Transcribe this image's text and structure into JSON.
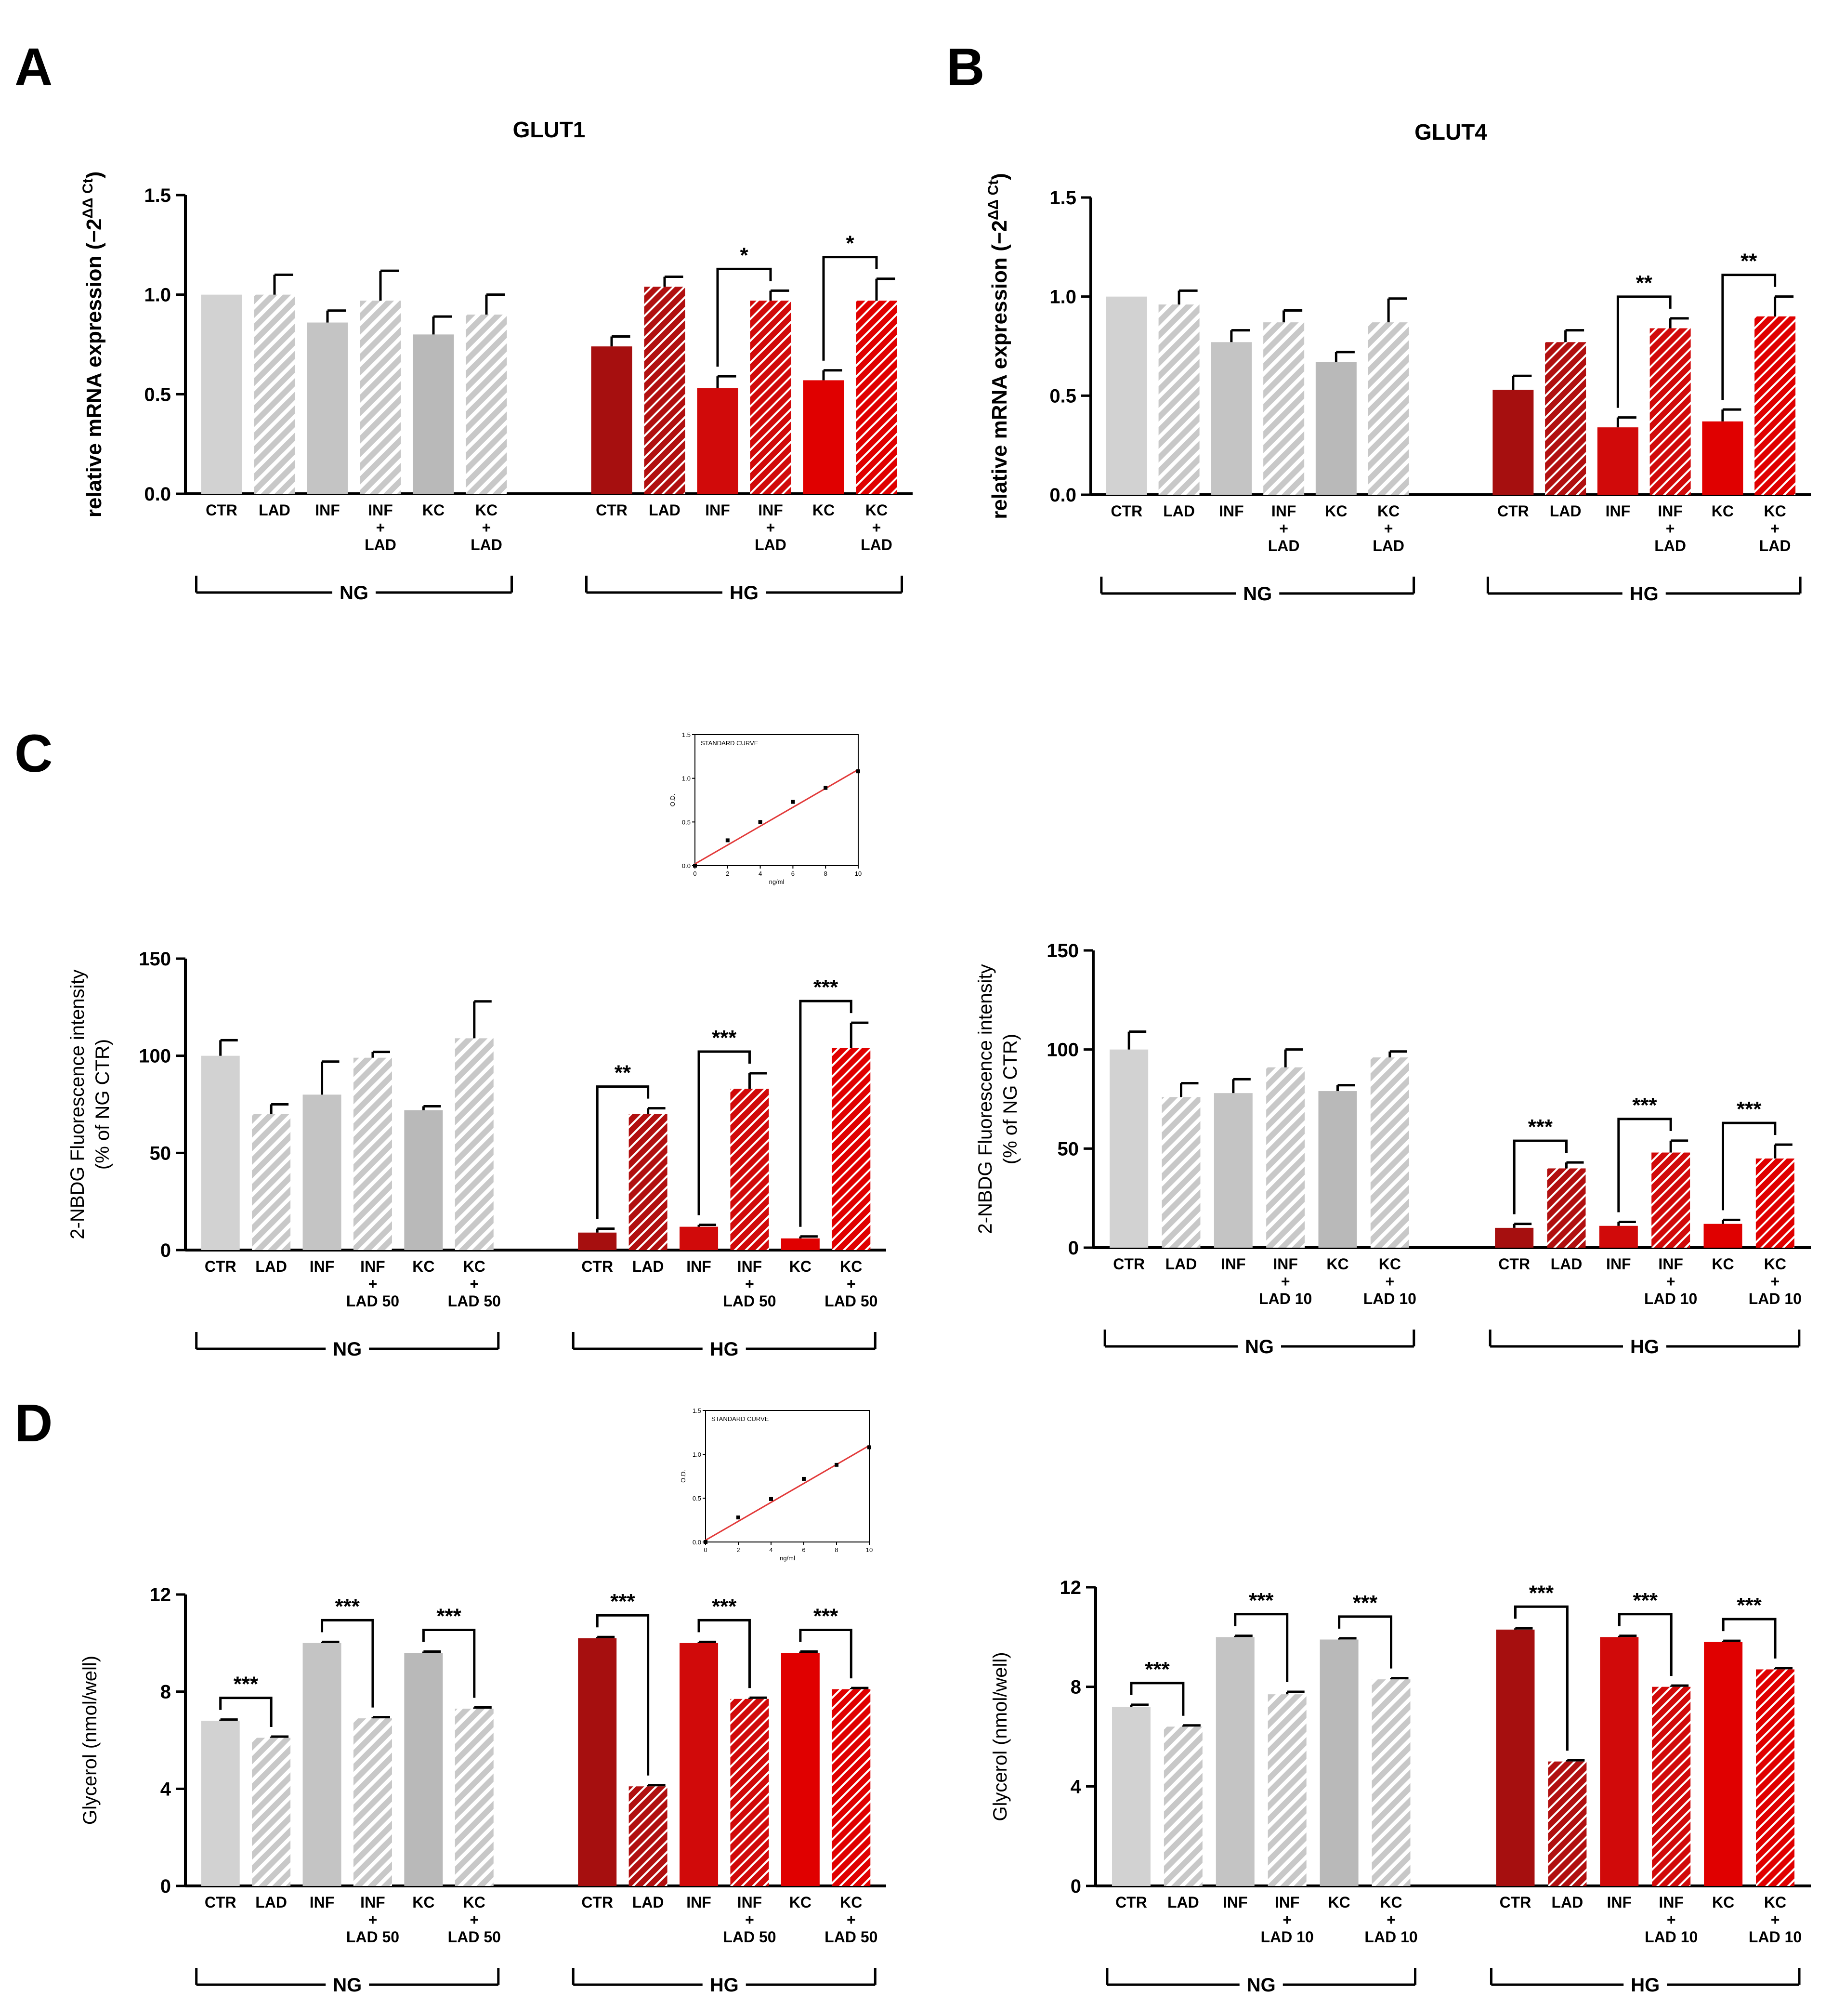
{
  "panels": {
    "A": "A",
    "B": "B",
    "C": "C",
    "D": "D"
  },
  "colors": {
    "ng_ctr": "#d2d2d2",
    "ng_lad": "#c8c8c8",
    "ng_inf": "#c4c4c4",
    "ng_inf_lad": "#c4c4c4",
    "ng_kc": "#b9b9b9",
    "ng_kc_lad": "#bdbdbd",
    "hg_ctr": "#a60f0f",
    "hg_lad": "#b11010",
    "hg_inf": "#d10a0a",
    "hg_kc": "#e00000",
    "hatch_gray": "#ffffff",
    "hatch_red": "#ffffff",
    "curve_line": "#e23b3b",
    "axis": "#000000"
  },
  "chart_data": [
    {
      "id": "A",
      "type": "bar",
      "title": "GLUT1",
      "ylabel_main": "relative mRNA expression (−2",
      "ylabel_sup": "ΔΔ Ct",
      "ylabel_end": ")",
      "ylim": [
        0,
        1.5
      ],
      "yticks": [
        "0.0",
        "0.5",
        "1.0",
        "1.5"
      ],
      "ytick_values": [
        0,
        0.5,
        1.0,
        1.5
      ],
      "categories": [
        [
          "CTR"
        ],
        [
          "LAD"
        ],
        [
          "INF"
        ],
        [
          "INF",
          "+",
          "LAD"
        ],
        [
          "KC"
        ],
        [
          "KC",
          "+",
          "LAD"
        ],
        [
          "CTR"
        ],
        [
          "LAD"
        ],
        [
          "INF"
        ],
        [
          "INF",
          "+",
          "LAD"
        ],
        [
          "KC"
        ],
        [
          "KC",
          "+",
          "LAD"
        ]
      ],
      "groups": [
        "NG",
        "HG"
      ],
      "values": [
        1.0,
        1.0,
        0.86,
        0.97,
        0.8,
        0.9,
        0.74,
        1.04,
        0.53,
        0.97,
        0.57,
        0.97
      ],
      "errors": [
        0.0,
        0.1,
        0.06,
        0.15,
        0.09,
        0.1,
        0.05,
        0.05,
        0.06,
        0.05,
        0.05,
        0.11
      ],
      "significance": [
        {
          "from": 8,
          "to": 9,
          "label": "*"
        },
        {
          "from": 10,
          "to": 11,
          "label": "*"
        }
      ]
    },
    {
      "id": "B",
      "type": "bar",
      "title": "GLUT4",
      "ylabel_main": "relative mRNA expression (−2",
      "ylabel_sup": "ΔΔ Ct",
      "ylabel_end": ")",
      "ylim": [
        0,
        1.5
      ],
      "yticks": [
        "0.0",
        "0.5",
        "1.0",
        "1.5"
      ],
      "ytick_values": [
        0,
        0.5,
        1.0,
        1.5
      ],
      "categories": [
        [
          "CTR"
        ],
        [
          "LAD"
        ],
        [
          "INF"
        ],
        [
          "INF",
          "+",
          "LAD"
        ],
        [
          "KC"
        ],
        [
          "KC",
          "+",
          "LAD"
        ],
        [
          "CTR"
        ],
        [
          "LAD"
        ],
        [
          "INF"
        ],
        [
          "INF",
          "+",
          "LAD"
        ],
        [
          "KC"
        ],
        [
          "KC",
          "+",
          "LAD"
        ]
      ],
      "groups": [
        "NG",
        "HG"
      ],
      "values": [
        1.0,
        0.96,
        0.77,
        0.87,
        0.67,
        0.87,
        0.53,
        0.77,
        0.34,
        0.84,
        0.37,
        0.9
      ],
      "errors": [
        0.0,
        0.07,
        0.06,
        0.06,
        0.05,
        0.12,
        0.07,
        0.06,
        0.05,
        0.05,
        0.06,
        0.1
      ],
      "significance": [
        {
          "from": 8,
          "to": 9,
          "label": "**"
        },
        {
          "from": 10,
          "to": 11,
          "label": "**"
        }
      ]
    },
    {
      "id": "C1",
      "type": "bar",
      "title": "",
      "ylabel_lines": [
        "2-NBDG Fluorescence intensity",
        "(% of NG CTR)"
      ],
      "ylim": [
        0,
        150
      ],
      "yticks": [
        "0",
        "50",
        "100",
        "150"
      ],
      "ytick_values": [
        0,
        50,
        100,
        150
      ],
      "categories": [
        [
          "CTR"
        ],
        [
          "LAD"
        ],
        [
          "INF"
        ],
        [
          "INF",
          "+",
          "LAD 50"
        ],
        [
          "KC"
        ],
        [
          "KC",
          "+",
          "LAD 50"
        ],
        [
          "CTR"
        ],
        [
          "LAD"
        ],
        [
          "INF"
        ],
        [
          "INF",
          "+",
          "LAD 50"
        ],
        [
          "KC"
        ],
        [
          "KC",
          "+",
          "LAD 50"
        ]
      ],
      "groups": [
        "NG",
        "HG"
      ],
      "values": [
        100,
        70,
        80,
        99,
        72,
        109,
        9,
        70,
        12,
        83,
        6,
        104
      ],
      "errors": [
        8,
        5,
        17,
        3,
        2,
        19,
        2,
        3,
        1,
        8,
        1,
        13
      ],
      "significance": [
        {
          "from": 6,
          "to": 7,
          "label": "**"
        },
        {
          "from": 8,
          "to": 9,
          "label": "***"
        },
        {
          "from": 10,
          "to": 11,
          "label": "***"
        }
      ]
    },
    {
      "id": "C2",
      "type": "bar",
      "title": "",
      "ylabel_lines": [
        "2-NBDG Fluorescence intensity",
        "(% of NG CTR)"
      ],
      "ylim": [
        0,
        150
      ],
      "yticks": [
        "0",
        "50",
        "100",
        "150"
      ],
      "ytick_values": [
        0,
        50,
        100,
        150
      ],
      "categories": [
        [
          "CTR"
        ],
        [
          "LAD"
        ],
        [
          "INF"
        ],
        [
          "INF",
          "+",
          "LAD 10"
        ],
        [
          "KC"
        ],
        [
          "KC",
          "+",
          "LAD 10"
        ],
        [
          "CTR"
        ],
        [
          "LAD"
        ],
        [
          "INF"
        ],
        [
          "INF",
          "+",
          "LAD 10"
        ],
        [
          "KC"
        ],
        [
          "KC",
          "+",
          "LAD 10"
        ]
      ],
      "groups": [
        "NG",
        "HG"
      ],
      "values": [
        100,
        76,
        78,
        91,
        79,
        96,
        10,
        40,
        11,
        48,
        12,
        45
      ],
      "errors": [
        9,
        7,
        7,
        9,
        3,
        3,
        2,
        3,
        2,
        6,
        2,
        7
      ],
      "significance": [
        {
          "from": 6,
          "to": 7,
          "label": "***"
        },
        {
          "from": 8,
          "to": 9,
          "label": "***"
        },
        {
          "from": 10,
          "to": 11,
          "label": "***"
        }
      ]
    },
    {
      "id": "D1",
      "type": "bar",
      "title": "",
      "ylabel_lines": [
        "Glycerol (nmol/well)"
      ],
      "ylim": [
        0,
        12
      ],
      "yticks": [
        "0",
        "4",
        "8",
        "12"
      ],
      "ytick_values": [
        0,
        4,
        8,
        12
      ],
      "categories": [
        [
          "CTR"
        ],
        [
          "LAD"
        ],
        [
          "INF"
        ],
        [
          "INF",
          "+",
          "LAD 50"
        ],
        [
          "KC"
        ],
        [
          "KC",
          "+",
          "LAD 50"
        ],
        [
          "CTR"
        ],
        [
          "LAD"
        ],
        [
          "INF"
        ],
        [
          "INF",
          "+",
          "LAD 50"
        ],
        [
          "KC"
        ],
        [
          "KC",
          "+",
          "LAD 50"
        ]
      ],
      "groups": [
        "NG",
        "HG"
      ],
      "values": [
        6.8,
        6.1,
        10.0,
        6.9,
        9.6,
        7.3,
        10.2,
        4.1,
        10.0,
        7.7,
        9.6,
        8.1
      ],
      "errors": [
        0.05,
        0.05,
        0.05,
        0.05,
        0.05,
        0.05,
        0.05,
        0.05,
        0.05,
        0.05,
        0.05,
        0.05
      ],
      "significance": [
        {
          "from": 0,
          "to": 1,
          "label": "***"
        },
        {
          "from": 2,
          "to": 3,
          "label": "***"
        },
        {
          "from": 4,
          "to": 5,
          "label": "***"
        },
        {
          "from": 6,
          "to": 7,
          "label": "***"
        },
        {
          "from": 8,
          "to": 9,
          "label": "***"
        },
        {
          "from": 10,
          "to": 11,
          "label": "***"
        }
      ]
    },
    {
      "id": "D2",
      "type": "bar",
      "title": "",
      "ylabel_lines": [
        "Glycerol (nmol/well)"
      ],
      "ylim": [
        0,
        12
      ],
      "yticks": [
        "0",
        "4",
        "8",
        "12"
      ],
      "ytick_values": [
        0,
        4,
        8,
        12
      ],
      "categories": [
        [
          "CTR"
        ],
        [
          "LAD"
        ],
        [
          "INF"
        ],
        [
          "INF",
          "+",
          "LAD 10"
        ],
        [
          "KC"
        ],
        [
          "KC",
          "+",
          "LAD 10"
        ],
        [
          "CTR"
        ],
        [
          "LAD"
        ],
        [
          "INF"
        ],
        [
          "INF",
          "+",
          "LAD 10"
        ],
        [
          "KC"
        ],
        [
          "KC",
          "+",
          "LAD 10"
        ]
      ],
      "groups": [
        "NG",
        "HG"
      ],
      "values": [
        7.2,
        6.4,
        10.0,
        7.7,
        9.9,
        8.3,
        10.3,
        5.0,
        10.0,
        8.0,
        9.8,
        8.7
      ],
      "errors": [
        0.08,
        0.05,
        0.05,
        0.1,
        0.05,
        0.05,
        0.05,
        0.05,
        0.05,
        0.05,
        0.05,
        0.05
      ],
      "significance": [
        {
          "from": 0,
          "to": 1,
          "label": "***"
        },
        {
          "from": 2,
          "to": 3,
          "label": "***"
        },
        {
          "from": 4,
          "to": 5,
          "label": "***"
        },
        {
          "from": 6,
          "to": 7,
          "label": "***"
        },
        {
          "from": 8,
          "to": 9,
          "label": "***"
        },
        {
          "from": 10,
          "to": 11,
          "label": "***"
        }
      ]
    },
    {
      "id": "C-inset",
      "type": "scatter",
      "title": "STANDARD CURVE",
      "xlabel": "ng/ml",
      "ylabel": "O.D.",
      "xlim": [
        0,
        10
      ],
      "ylim": [
        0,
        1.5
      ],
      "xticks": [
        "0",
        "2",
        "4",
        "6",
        "8",
        "10"
      ],
      "xtick_values": [
        0,
        2,
        4,
        6,
        8,
        10
      ],
      "yticks": [
        "0.0",
        "0.5",
        "1.0",
        "1.5"
      ],
      "ytick_values": [
        0,
        0.5,
        1.0,
        1.5
      ],
      "x": [
        0,
        2,
        4,
        6,
        8,
        10
      ],
      "y": [
        0.0,
        0.29,
        0.5,
        0.73,
        0.89,
        1.08
      ],
      "fit": {
        "x": [
          0,
          10
        ],
        "y": [
          0.02,
          1.1
        ]
      }
    },
    {
      "id": "D-inset",
      "type": "scatter",
      "title": "STANDARD CURVE",
      "xlabel": "ng/ml",
      "ylabel": "O.D.",
      "xlim": [
        0,
        10
      ],
      "ylim": [
        0,
        1.5
      ],
      "xticks": [
        "0",
        "2",
        "4",
        "6",
        "8",
        "10"
      ],
      "xtick_values": [
        0,
        2,
        4,
        6,
        8,
        10
      ],
      "yticks": [
        "0.0",
        "0.5",
        "1.0",
        "1.5"
      ],
      "ytick_values": [
        0,
        0.5,
        1.0,
        1.5
      ],
      "x": [
        0,
        2,
        4,
        6,
        8,
        10
      ],
      "y": [
        0.0,
        0.28,
        0.49,
        0.72,
        0.88,
        1.08
      ],
      "fit": {
        "x": [
          0,
          10
        ],
        "y": [
          0.02,
          1.1
        ]
      }
    }
  ]
}
